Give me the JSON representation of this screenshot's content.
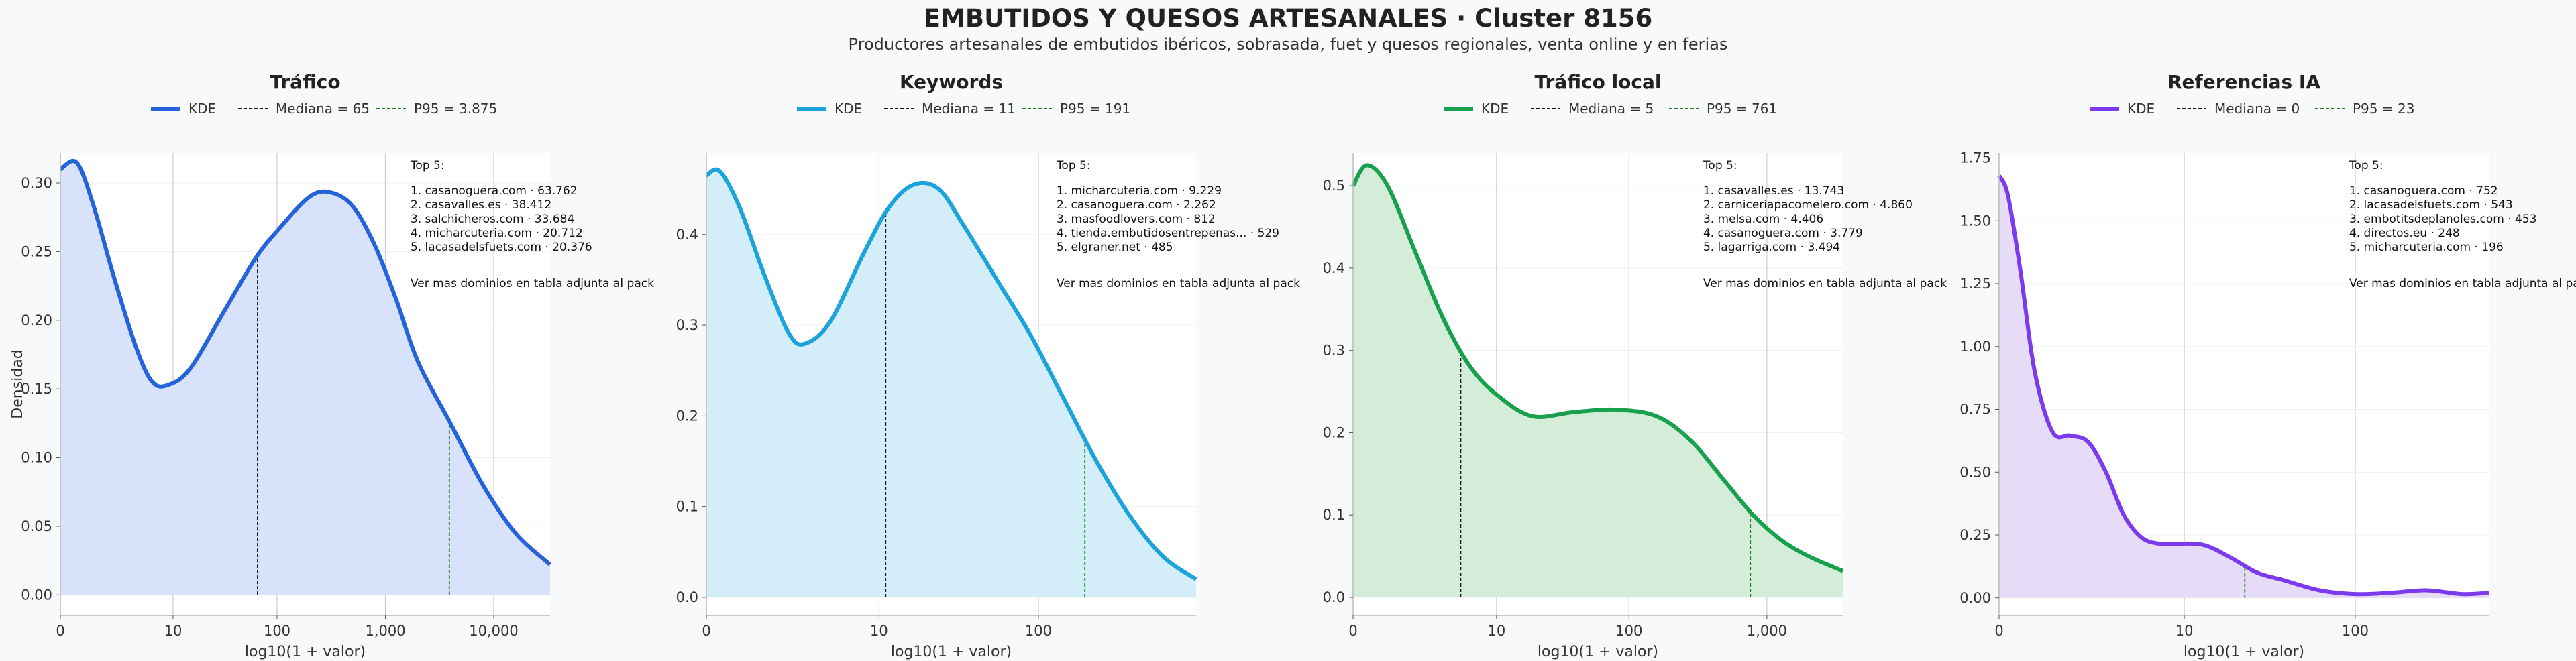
{
  "title": "EMBUTIDOS Y QUESOS ARTESANALES · Cluster 8156",
  "subtitle": "Productores artesanales de embutidos ibéricos, sobrasada, fuet y quesos regionales, venta online y en ferias",
  "legend_kde": "KDE",
  "xlabel": "log10(1 + valor)",
  "ylabel": "Densidad",
  "top_heading": "Top 5:",
  "top_footer": "Ver mas dominios en tabla adjunta al pack",
  "colors": {
    "trafico": "#2563db",
    "keywords": "#1ba3dc",
    "trafico_local": "#18a04e",
    "referencias_ia": "#7c3aed",
    "median": "#111111",
    "p95": "#1a7f1a"
  },
  "chart_data": [
    {
      "type": "area",
      "title": "Tráfico",
      "color": "#2563db",
      "fill": "#d9e2fb",
      "median_label": "Mediana = 65",
      "p95_label": "P95 = 3.875",
      "median_x": 1.82,
      "p95_x": 3.59,
      "xlim": [
        0,
        4.52
      ],
      "ylim": [
        -0.015,
        0.322
      ],
      "yticks": [
        0,
        0.05,
        0.1,
        0.15,
        0.2,
        0.25,
        0.3
      ],
      "ytick_labels": [
        "0.00",
        "0.05",
        "0.10",
        "0.15",
        "0.20",
        "0.25",
        "0.30"
      ],
      "xticks": [
        0,
        1.04,
        2.0,
        3.0,
        4.0
      ],
      "xtick_labels": [
        "0",
        "10",
        "100",
        "1,000",
        "10,000"
      ],
      "x": [
        0,
        0.15,
        0.3,
        0.5,
        0.7,
        0.85,
        1.0,
        1.2,
        1.5,
        1.8,
        2.0,
        2.3,
        2.5,
        2.7,
        2.9,
        3.1,
        3.3,
        3.6,
        3.9,
        4.2,
        4.52
      ],
      "y": [
        0.31,
        0.315,
        0.285,
        0.23,
        0.18,
        0.155,
        0.153,
        0.165,
        0.205,
        0.245,
        0.265,
        0.29,
        0.293,
        0.283,
        0.255,
        0.215,
        0.17,
        0.125,
        0.08,
        0.045,
        0.022
      ],
      "top5": [
        "1. casanoguera.com · 63.762",
        "2. casavalles.es · 38.412",
        "3. salchicheros.com · 33.684",
        "4. micharcuteria.com · 20.712",
        "5. lacasadelsfuets.com · 20.376"
      ]
    },
    {
      "type": "area",
      "title": "Keywords",
      "color": "#1ba3dc",
      "fill": "#d4eef9",
      "median_label": "Mediana = 11",
      "p95_label": "P95 = 191",
      "median_x": 1.08,
      "p95_x": 2.28,
      "xlim": [
        0,
        2.95
      ],
      "ylim": [
        -0.02,
        0.49
      ],
      "yticks": [
        0,
        0.1,
        0.2,
        0.3,
        0.4
      ],
      "ytick_labels": [
        "0.0",
        "0.1",
        "0.2",
        "0.3",
        "0.4"
      ],
      "xticks": [
        1.04,
        2.0
      ],
      "xtick_labels": [
        "10",
        "100"
      ],
      "x": [
        0,
        0.08,
        0.2,
        0.35,
        0.5,
        0.6,
        0.75,
        0.95,
        1.1,
        1.25,
        1.4,
        1.55,
        1.75,
        1.95,
        2.15,
        2.35,
        2.55,
        2.75,
        2.95
      ],
      "y": [
        0.465,
        0.47,
        0.43,
        0.355,
        0.29,
        0.28,
        0.305,
        0.38,
        0.43,
        0.455,
        0.45,
        0.41,
        0.35,
        0.29,
        0.22,
        0.15,
        0.09,
        0.045,
        0.02
      ],
      "top5": [
        "1. micharcuteria.com · 9.229",
        "2. casanoguera.com · 2.262",
        "3. masfoodlovers.com · 812",
        "4. tienda.embutidosentrepenas... · 529",
        "5. elgraner.net · 485"
      ]
    },
    {
      "type": "area",
      "title": "Tráfico local",
      "color": "#18a04e",
      "fill": "#d3edd9",
      "median_label": "Mediana = 5",
      "p95_label": "P95 = 761",
      "median_x": 0.78,
      "p95_x": 2.88,
      "xlim": [
        0,
        3.55
      ],
      "ylim": [
        -0.022,
        0.54
      ],
      "yticks": [
        0,
        0.1,
        0.2,
        0.3,
        0.4,
        0.5
      ],
      "ytick_labels": [
        "0.0",
        "0.1",
        "0.2",
        "0.3",
        "0.4",
        "0.5"
      ],
      "xticks": [
        1.04,
        2.0,
        3.0
      ],
      "xtick_labels": [
        "10",
        "100",
        "1,000"
      ],
      "x": [
        0,
        0.1,
        0.25,
        0.45,
        0.65,
        0.85,
        1.05,
        1.3,
        1.6,
        1.9,
        2.2,
        2.45,
        2.7,
        2.9,
        3.1,
        3.3,
        3.55
      ],
      "y": [
        0.5,
        0.525,
        0.5,
        0.42,
        0.34,
        0.28,
        0.245,
        0.22,
        0.225,
        0.228,
        0.22,
        0.19,
        0.14,
        0.1,
        0.07,
        0.05,
        0.032
      ],
      "top5": [
        "1. casavalles.es · 13.743",
        "2. carniceriapacomelero.com · 4.860",
        "3. melsa.com · 4.406",
        "4. casanoguera.com · 3.779",
        "5. lagarriga.com · 3.494"
      ]
    },
    {
      "type": "area",
      "title": "Referencias IA",
      "color": "#7c3aed",
      "fill": "#e7dcf8",
      "median_label": "Mediana = 0",
      "p95_label": "P95 = 23",
      "median_x": 0,
      "p95_x": 1.38,
      "xlim": [
        0,
        2.75
      ],
      "ylim": [
        -0.07,
        1.77
      ],
      "yticks": [
        0,
        0.25,
        0.5,
        0.75,
        1.0,
        1.25,
        1.5,
        1.75
      ],
      "ytick_labels": [
        "0.00",
        "0.25",
        "0.50",
        "0.75",
        "1.00",
        "1.25",
        "1.50",
        "1.75"
      ],
      "xticks": [
        1.04,
        2.0
      ],
      "xtick_labels": [
        "10",
        "100"
      ],
      "x": [
        0,
        0.05,
        0.12,
        0.2,
        0.3,
        0.4,
        0.5,
        0.6,
        0.7,
        0.8,
        0.9,
        1.0,
        1.15,
        1.3,
        1.45,
        1.6,
        1.8,
        2.0,
        2.2,
        2.4,
        2.6,
        2.75
      ],
      "y": [
        1.68,
        1.6,
        1.3,
        0.9,
        0.66,
        0.645,
        0.62,
        0.5,
        0.33,
        0.24,
        0.215,
        0.215,
        0.21,
        0.16,
        0.1,
        0.07,
        0.03,
        0.015,
        0.02,
        0.03,
        0.015,
        0.02
      ],
      "top5": [
        "1. casanoguera.com · 752",
        "2. lacasadelsfuets.com · 543",
        "3. embotitsdeplanoles.com · 453",
        "4. directos.eu · 248",
        "5. micharcuteria.com · 196"
      ]
    }
  ]
}
